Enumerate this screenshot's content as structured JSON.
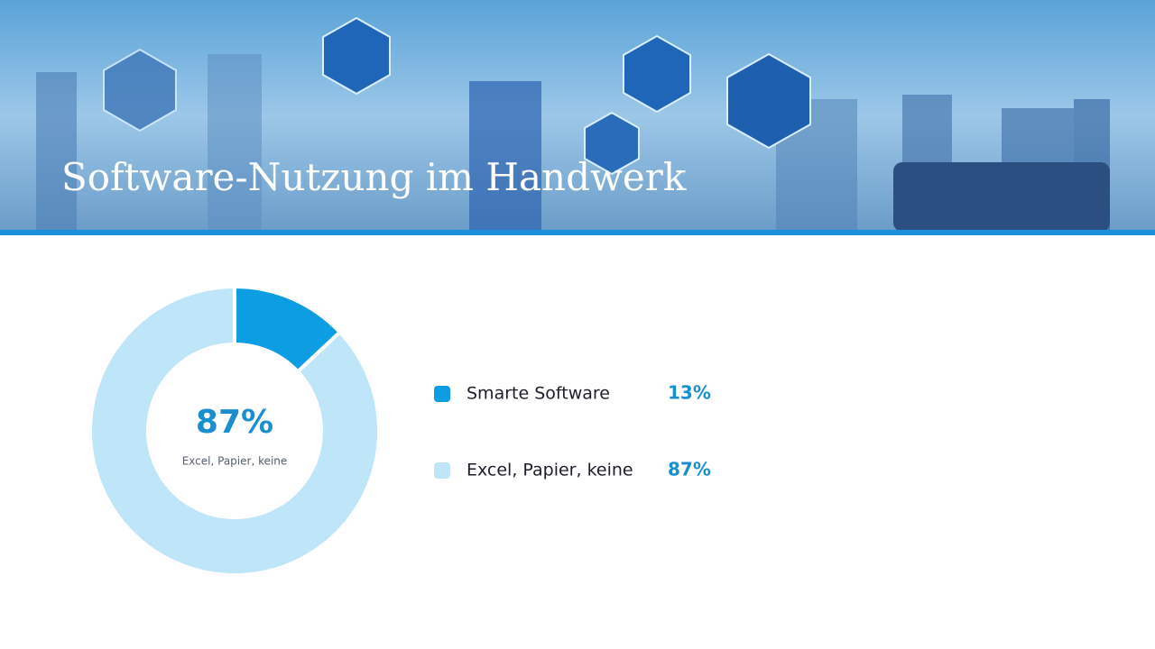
{
  "chart_data": {
    "type": "donut",
    "title": "Software-Nutzung im Handwerk",
    "categories": [
      "Smarte Software",
      "Excel, Papier, keine"
    ],
    "values": [
      13,
      87
    ],
    "value_labels": [
      "13%",
      "87%"
    ],
    "colors": [
      "#0d9de2",
      "#bfe5f8"
    ]
  }
}
